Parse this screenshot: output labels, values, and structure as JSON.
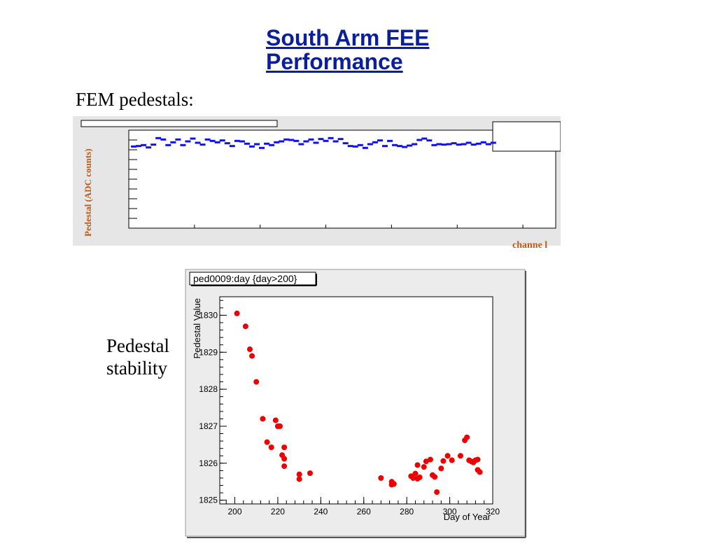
{
  "title_lines": [
    "South Arm FEE",
    "Performance"
  ],
  "section1_label": "FEM pedestals:",
  "section2_label_lines": [
    "Pedestal",
    "stability"
  ],
  "colors": {
    "title": "#0b1f9a",
    "chart1_marker": "#1010ee",
    "chart1_axis_label": "#c05a17",
    "chart2_marker": "#ee0000"
  },
  "chart_data": [
    {
      "type": "scatter",
      "title": "",
      "xlabel": "channe l",
      "ylabel": "Pedestal (ADC counts)",
      "xlim": [
        0,
        1300
      ],
      "ylim": [
        0,
        2100
      ],
      "grid": false,
      "series": [
        {
          "values": [
            [
              15,
              1750
            ],
            [
              30,
              1760
            ],
            [
              45,
              1780
            ],
            [
              60,
              1730
            ],
            [
              75,
              1790
            ],
            [
              90,
              1930
            ],
            [
              105,
              1900
            ],
            [
              120,
              1780
            ],
            [
              135,
              1840
            ],
            [
              150,
              1900
            ],
            [
              165,
              1780
            ],
            [
              180,
              1860
            ],
            [
              195,
              1920
            ],
            [
              210,
              1830
            ],
            [
              225,
              1790
            ],
            [
              240,
              1900
            ],
            [
              255,
              1870
            ],
            [
              270,
              1840
            ],
            [
              285,
              1880
            ],
            [
              300,
              1820
            ],
            [
              315,
              1760
            ],
            [
              330,
              1870
            ],
            [
              345,
              1860
            ],
            [
              360,
              1810
            ],
            [
              375,
              1750
            ],
            [
              390,
              1800
            ],
            [
              405,
              1720
            ],
            [
              420,
              1810
            ],
            [
              435,
              1780
            ],
            [
              450,
              1840
            ],
            [
              465,
              1860
            ],
            [
              480,
              1900
            ],
            [
              495,
              1890
            ],
            [
              510,
              1870
            ],
            [
              525,
              1800
            ],
            [
              540,
              1860
            ],
            [
              555,
              1900
            ],
            [
              570,
              1830
            ],
            [
              585,
              1910
            ],
            [
              600,
              1870
            ],
            [
              615,
              1930
            ],
            [
              630,
              1860
            ],
            [
              645,
              1910
            ],
            [
              660,
              1820
            ],
            [
              675,
              1760
            ],
            [
              690,
              1750
            ],
            [
              705,
              1780
            ],
            [
              720,
              1720
            ],
            [
              735,
              1800
            ],
            [
              750,
              1840
            ],
            [
              765,
              1880
            ],
            [
              780,
              1760
            ],
            [
              795,
              1870
            ],
            [
              810,
              1780
            ],
            [
              825,
              1760
            ],
            [
              840,
              1740
            ],
            [
              855,
              1770
            ],
            [
              870,
              1800
            ],
            [
              885,
              1890
            ],
            [
              900,
              1920
            ],
            [
              915,
              1880
            ],
            [
              930,
              1780
            ],
            [
              945,
              1800
            ],
            [
              960,
              1790
            ],
            [
              975,
              1800
            ],
            [
              990,
              1820
            ],
            [
              1005,
              1790
            ],
            [
              1020,
              1800
            ],
            [
              1035,
              1830
            ],
            [
              1050,
              1790
            ],
            [
              1065,
              1810
            ],
            [
              1080,
              1840
            ],
            [
              1095,
              1800
            ],
            [
              1110,
              1830
            ]
          ]
        }
      ]
    },
    {
      "type": "scatter",
      "title": "ped0009:day {day>200}",
      "xlabel": "Day of Year",
      "ylabel": "Pedestal Value",
      "xlim": [
        193,
        320
      ],
      "ylim": [
        1824.9,
        1830.5
      ],
      "xticks": [
        200,
        220,
        240,
        260,
        280,
        300,
        320
      ],
      "yticks": [
        1825,
        1826,
        1827,
        1828,
        1829,
        1830
      ],
      "grid": false,
      "series": [
        {
          "values": [
            [
              201,
              1830.05
            ],
            [
              205,
              1829.7
            ],
            [
              207,
              1829.08
            ],
            [
              208,
              1828.9
            ],
            [
              210,
              1828.2
            ],
            [
              213,
              1827.2
            ],
            [
              215,
              1826.57
            ],
            [
              217,
              1826.43
            ],
            [
              219,
              1827.16
            ],
            [
              220,
              1827.0
            ],
            [
              221,
              1827.0
            ],
            [
              222,
              1826.22
            ],
            [
              223,
              1826.43
            ],
            [
              223,
              1826.12
            ],
            [
              223,
              1825.92
            ],
            [
              230,
              1825.7
            ],
            [
              230,
              1825.57
            ],
            [
              235,
              1825.73
            ],
            [
              268,
              1825.6
            ],
            [
              273,
              1825.5
            ],
            [
              273,
              1825.42
            ],
            [
              274,
              1825.44
            ],
            [
              282,
              1825.65
            ],
            [
              283,
              1825.6
            ],
            [
              284,
              1825.72
            ],
            [
              285,
              1825.58
            ],
            [
              285,
              1825.95
            ],
            [
              286,
              1825.62
            ],
            [
              288,
              1825.9
            ],
            [
              289,
              1826.05
            ],
            [
              291,
              1826.1
            ],
            [
              292,
              1825.68
            ],
            [
              293,
              1825.63
            ],
            [
              294,
              1825.22
            ],
            [
              296,
              1825.86
            ],
            [
              297,
              1826.06
            ],
            [
              299,
              1826.2
            ],
            [
              301,
              1826.08
            ],
            [
              305,
              1826.2
            ],
            [
              307,
              1826.62
            ],
            [
              308,
              1826.7
            ],
            [
              309,
              1826.08
            ],
            [
              310,
              1826.05
            ],
            [
              311,
              1826.02
            ],
            [
              312,
              1826.08
            ],
            [
              313,
              1826.1
            ],
            [
              313,
              1825.82
            ],
            [
              314,
              1825.76
            ]
          ]
        }
      ]
    }
  ]
}
